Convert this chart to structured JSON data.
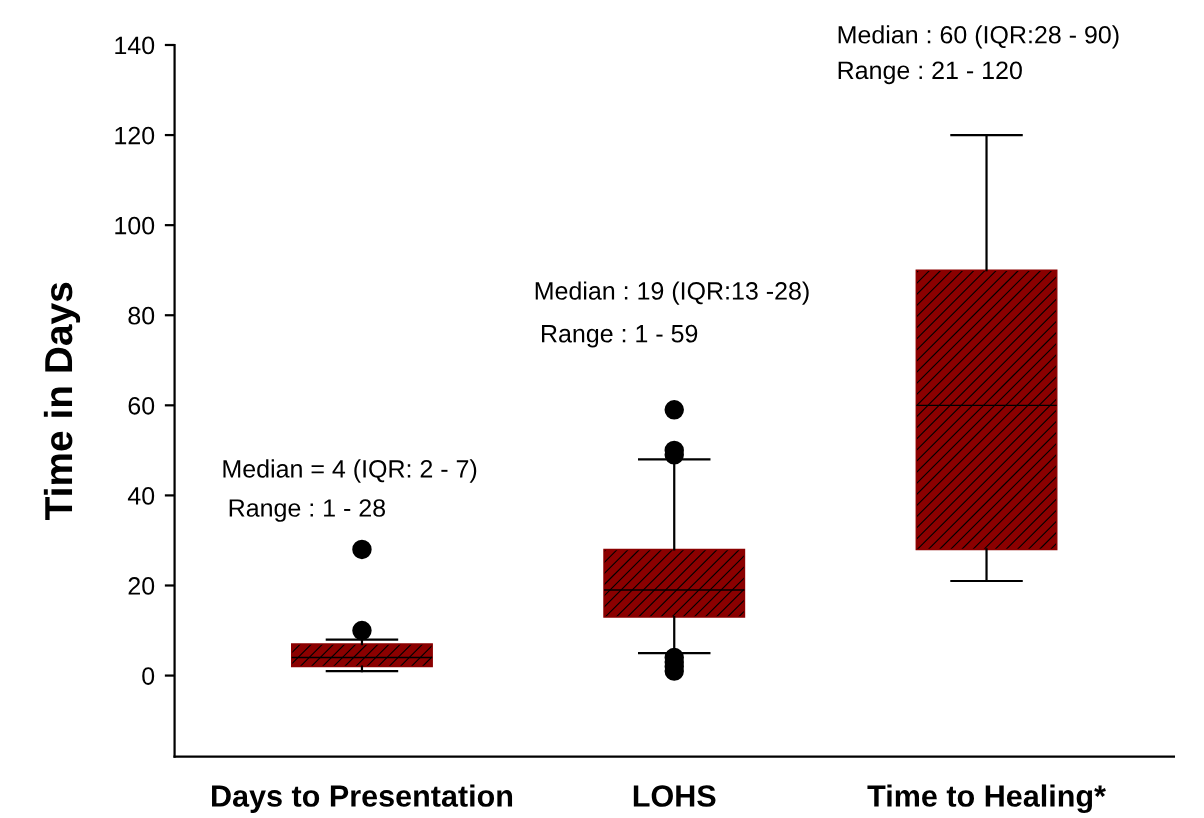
{
  "chart_data": {
    "type": "box",
    "ylabel": "Time in Days",
    "categories": [
      "Days to Presentation",
      "LOHS",
      "Time to Healing*"
    ],
    "color": "#8b0000",
    "boxes": [
      {
        "low": 1,
        "q1": 2,
        "median": 4,
        "q3": 7,
        "high": 8,
        "outliers": [
          10,
          28
        ]
      },
      {
        "low": 5,
        "q1": 13,
        "median": 19,
        "q3": 28,
        "high": 48,
        "outliers": [
          1,
          2,
          3,
          4,
          49,
          50,
          59
        ]
      },
      {
        "low": 21,
        "q1": 28,
        "median": 60,
        "q3": 90,
        "high": 120
      }
    ],
    "ylim": [
      -18,
      140
    ],
    "yticks": [
      0,
      20,
      40,
      60,
      80,
      100,
      120,
      140
    ],
    "grid": false,
    "annotations": [
      "Median = 4 (IQR: 2 - 7)",
      "Range : 1 - 28",
      "Median : 19 (IQR:13 -28)",
      "Range : 1 - 59",
      "Median : 60 (IQR:28 - 90)",
      "Range : 21 - 120"
    ]
  }
}
